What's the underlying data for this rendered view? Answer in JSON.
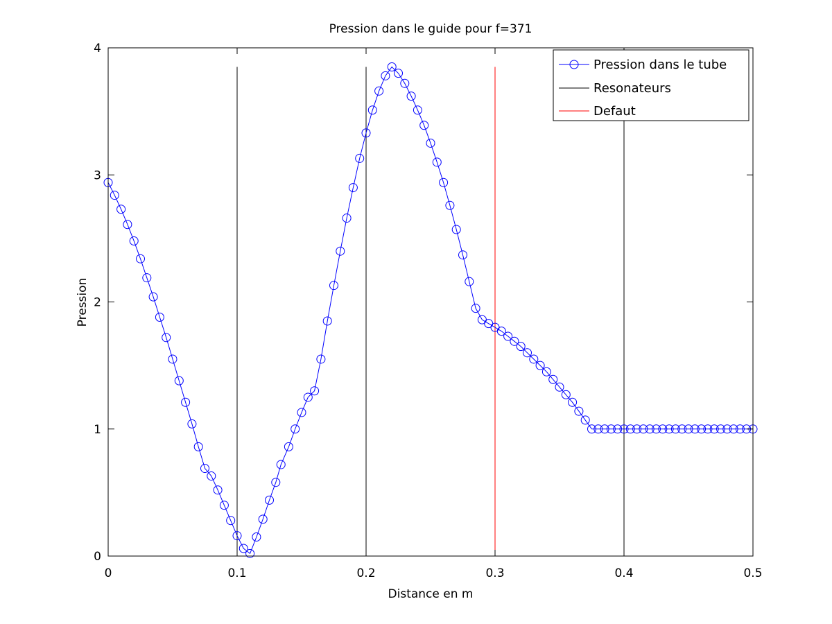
{
  "chart_data": {
    "type": "line",
    "title": "Pression dans le guide pour f=371",
    "xlabel": "Distance en m",
    "ylabel": "Pression",
    "xlim": [
      0,
      0.5
    ],
    "ylim": [
      0,
      4
    ],
    "x_ticks": [
      0,
      0.1,
      0.2,
      0.3,
      0.4,
      0.5
    ],
    "x_tick_labels": [
      "0",
      "0.1",
      "0.2",
      "0.3",
      "0.4",
      "0.5"
    ],
    "y_ticks": [
      0,
      1,
      2,
      3,
      4
    ],
    "y_tick_labels": [
      "0",
      "1",
      "2",
      "3",
      "4"
    ],
    "grid": false,
    "legend_position": "top-right",
    "legend": [
      {
        "label": "Pression dans le tube",
        "color": "#0000ff",
        "marker": "circle"
      },
      {
        "label": "Resonateurs",
        "color": "#000000"
      },
      {
        "label": "Defaut",
        "color": "#ff0000"
      }
    ],
    "vertical_lines": [
      {
        "series": "Resonateurs",
        "x": 0.1,
        "y_top": 3.85,
        "color": "#000000"
      },
      {
        "series": "Resonateurs",
        "x": 0.2,
        "y_top": 3.85,
        "color": "#000000"
      },
      {
        "series": "Defaut",
        "x": 0.3,
        "y_top": 3.85,
        "color": "#ff0000"
      },
      {
        "series": "Resonateurs",
        "x": 0.4,
        "y_top": 3.85,
        "color": "#000000"
      },
      {
        "series": "Resonateurs",
        "x": 0.5,
        "y_top": 3.85,
        "color": "#000000"
      }
    ],
    "series": [
      {
        "name": "Pression dans le tube",
        "color": "#0000ff",
        "marker": "circle",
        "x": [
          0.0,
          0.005,
          0.01,
          0.015,
          0.02,
          0.025,
          0.03,
          0.035,
          0.04,
          0.045,
          0.05,
          0.055,
          0.06,
          0.065,
          0.07,
          0.075,
          0.08,
          0.085,
          0.09,
          0.095,
          0.1,
          0.105,
          0.11,
          0.115,
          0.12,
          0.125,
          0.13,
          0.134,
          0.14,
          0.145,
          0.15,
          0.155,
          0.16,
          0.165,
          0.17,
          0.175,
          0.18,
          0.185,
          0.19,
          0.195,
          0.2,
          0.205,
          0.21,
          0.215,
          0.22,
          0.225,
          0.23,
          0.235,
          0.24,
          0.245,
          0.25,
          0.255,
          0.26,
          0.265,
          0.27,
          0.275,
          0.28,
          0.285,
          0.29,
          0.295,
          0.3,
          0.305,
          0.31,
          0.315,
          0.32,
          0.325,
          0.33,
          0.335,
          0.34,
          0.345,
          0.35,
          0.355,
          0.36,
          0.365,
          0.37,
          0.375,
          0.38,
          0.385,
          0.39,
          0.395,
          0.4,
          0.405,
          0.41,
          0.415,
          0.42,
          0.425,
          0.43,
          0.435,
          0.44,
          0.445,
          0.45,
          0.455,
          0.46,
          0.465,
          0.47,
          0.475,
          0.48,
          0.485,
          0.49,
          0.495,
          0.5
        ],
        "y": [
          2.94,
          2.84,
          2.73,
          2.61,
          2.48,
          2.34,
          2.19,
          2.04,
          1.88,
          1.72,
          1.55,
          1.38,
          1.21,
          1.04,
          0.86,
          0.69,
          0.63,
          0.52,
          0.4,
          0.28,
          0.16,
          0.06,
          0.02,
          0.15,
          0.29,
          0.44,
          0.58,
          0.72,
          0.86,
          1.0,
          1.13,
          1.25,
          1.3,
          1.55,
          1.85,
          2.13,
          2.4,
          2.66,
          2.9,
          3.13,
          3.33,
          3.51,
          3.66,
          3.78,
          3.85,
          3.8,
          3.72,
          3.62,
          3.51,
          3.39,
          3.25,
          3.1,
          2.94,
          2.76,
          2.57,
          2.37,
          2.16,
          1.95,
          1.86,
          1.83,
          1.8,
          1.77,
          1.73,
          1.69,
          1.65,
          1.6,
          1.55,
          1.5,
          1.45,
          1.39,
          1.33,
          1.27,
          1.21,
          1.14,
          1.07,
          1.0,
          1.0,
          1.0,
          1.0,
          1.0,
          1.0,
          1.0,
          1.0,
          1.0,
          1.0,
          1.0,
          1.0,
          1.0,
          1.0,
          1.0,
          1.0,
          1.0,
          1.0,
          1.0,
          1.0,
          1.0,
          1.0,
          1.0,
          1.0,
          1.0,
          1.0
        ]
      }
    ]
  }
}
